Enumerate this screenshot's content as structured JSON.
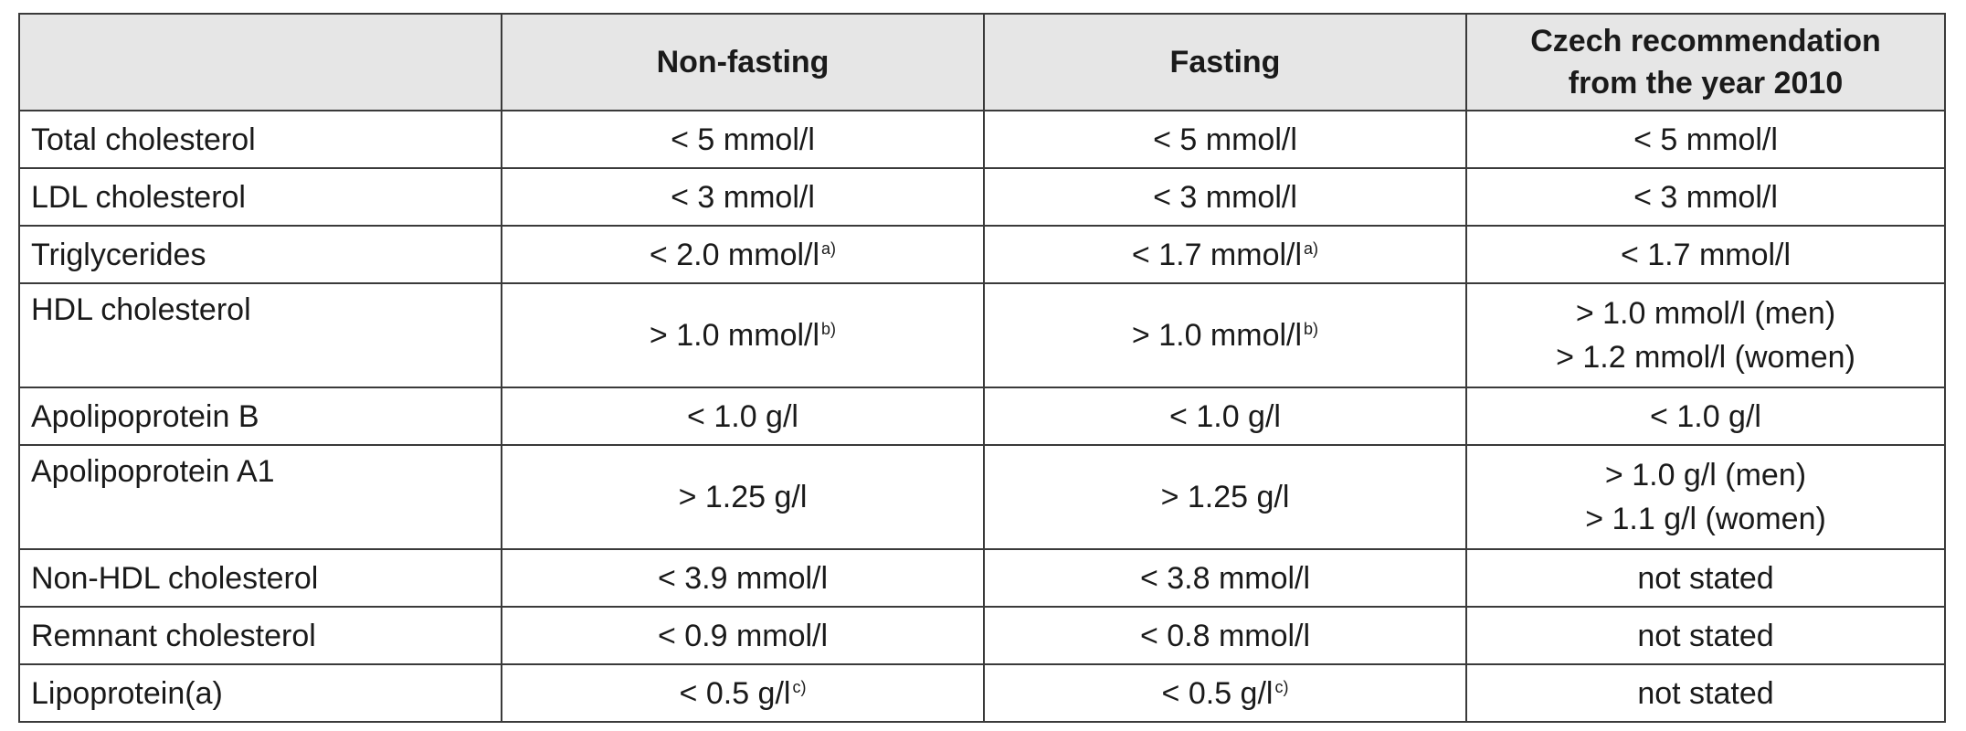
{
  "table": {
    "header": {
      "corner": "",
      "col1": "Non-fasting",
      "col2": "Fasting",
      "col3_line1": "Czech recommendation",
      "col3_line2": "from the year 2010"
    },
    "rows": [
      {
        "label": "Total cholesterol",
        "nonfasting": "< 5 mmol/l",
        "nonfasting_note": "",
        "fasting": "< 5 mmol/l",
        "fasting_note": "",
        "czech": "< 5 mmol/l"
      },
      {
        "label": "LDL cholesterol",
        "nonfasting": "< 3 mmol/l",
        "nonfasting_note": "",
        "fasting": "< 3 mmol/l",
        "fasting_note": "",
        "czech": "< 3 mmol/l"
      },
      {
        "label": "Triglycerides",
        "nonfasting": "< 2.0 mmol/l",
        "nonfasting_note": "a)",
        "fasting": "< 1.7 mmol/l",
        "fasting_note": "a)",
        "czech": "< 1.7 mmol/l"
      },
      {
        "label": "HDL cholesterol",
        "nonfasting": "> 1.0 mmol/l",
        "nonfasting_note": "b)",
        "fasting": "> 1.0 mmol/l",
        "fasting_note": "b)",
        "czech_line1": "> 1.0 mmol/l (men)",
        "czech_line2": "> 1.2 mmol/l (women)"
      },
      {
        "label": "Apolipoprotein B",
        "nonfasting": "< 1.0 g/l",
        "nonfasting_note": "",
        "fasting": "< 1.0 g/l",
        "fasting_note": "",
        "czech": "< 1.0 g/l"
      },
      {
        "label": "Apolipoprotein A1",
        "nonfasting": "> 1.25 g/l",
        "nonfasting_note": "",
        "fasting": "> 1.25 g/l",
        "fasting_note": "",
        "czech_line1": "> 1.0 g/l (men)",
        "czech_line2": "> 1.1 g/l (women)"
      },
      {
        "label": "Non-HDL cholesterol",
        "nonfasting": "< 3.9 mmol/l",
        "nonfasting_note": "",
        "fasting": "< 3.8 mmol/l",
        "fasting_note": "",
        "czech": "not stated"
      },
      {
        "label": "Remnant cholesterol",
        "nonfasting": "< 0.9 mmol/l",
        "nonfasting_note": "",
        "fasting": "< 0.8 mmol/l",
        "fasting_note": "",
        "czech": "not stated"
      },
      {
        "label": "Lipoprotein(a)",
        "nonfasting": "< 0.5 g/l",
        "nonfasting_note": "c)",
        "fasting": "< 0.5 g/l",
        "fasting_note": "c)",
        "czech": "not stated"
      }
    ]
  }
}
